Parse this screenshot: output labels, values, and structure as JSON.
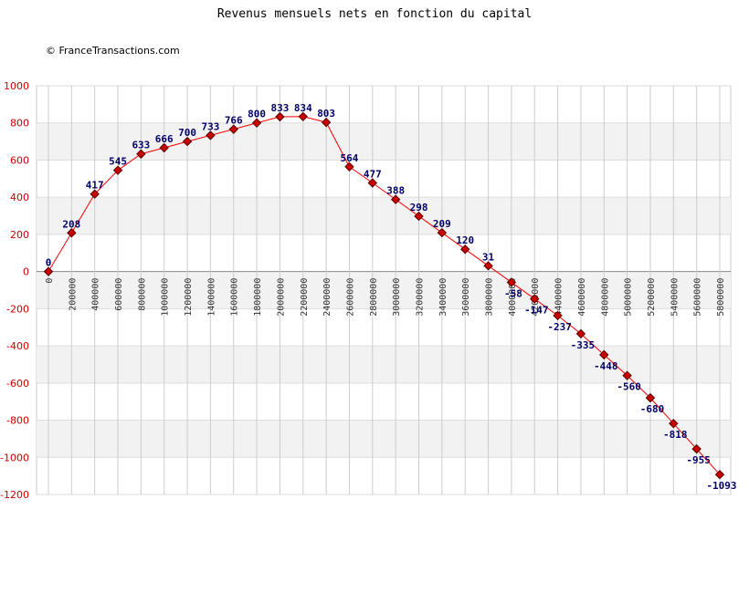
{
  "chart_data": {
    "type": "line",
    "title": "Revenus mensuels nets en fonction du capital",
    "credit": "© FranceTransactions.com",
    "xlabel": "",
    "ylabel": "",
    "ylim": [
      -1200,
      1000
    ],
    "y_ticks": [
      1000,
      800,
      600,
      400,
      200,
      0,
      -200,
      -400,
      -600,
      -800,
      -1000,
      -1200
    ],
    "grid": true,
    "colors": {
      "line": "#ff0000",
      "marker": "#cc0000",
      "label": "#000066",
      "ytick": "#cc0000"
    },
    "x": [
      0,
      200000,
      400000,
      600000,
      800000,
      1000000,
      1200000,
      1400000,
      1600000,
      1800000,
      2000000,
      2200000,
      2400000,
      2600000,
      2800000,
      3000000,
      3200000,
      3400000,
      3600000,
      3800000,
      4000000,
      4200000,
      4400000,
      4600000,
      4800000,
      5000000,
      5200000,
      5400000,
      5600000,
      5800000
    ],
    "x_tick_labels": [
      "0",
      "200000",
      "400000",
      "600000",
      "800000",
      "1000000",
      "1200000",
      "1400000",
      "1600000",
      "1800000",
      "2000000",
      "2200000",
      "2400000",
      "2600000",
      "2800000",
      "3000000",
      "3200000",
      "3400000",
      "3600000",
      "3800000",
      "4000000",
      "4200000",
      "4400000",
      "4600000",
      "4800000",
      "5000000",
      "5200000",
      "5400000",
      "5600000",
      "5800000"
    ],
    "series": [
      {
        "values": [
          0,
          208,
          417,
          545,
          633,
          666,
          700,
          733,
          766,
          800,
          833,
          834,
          803,
          564,
          477,
          388,
          298,
          209,
          120,
          31,
          -58,
          -147,
          -237,
          -335,
          -448,
          -560,
          -680,
          -818,
          -955,
          -1093
        ]
      }
    ]
  }
}
